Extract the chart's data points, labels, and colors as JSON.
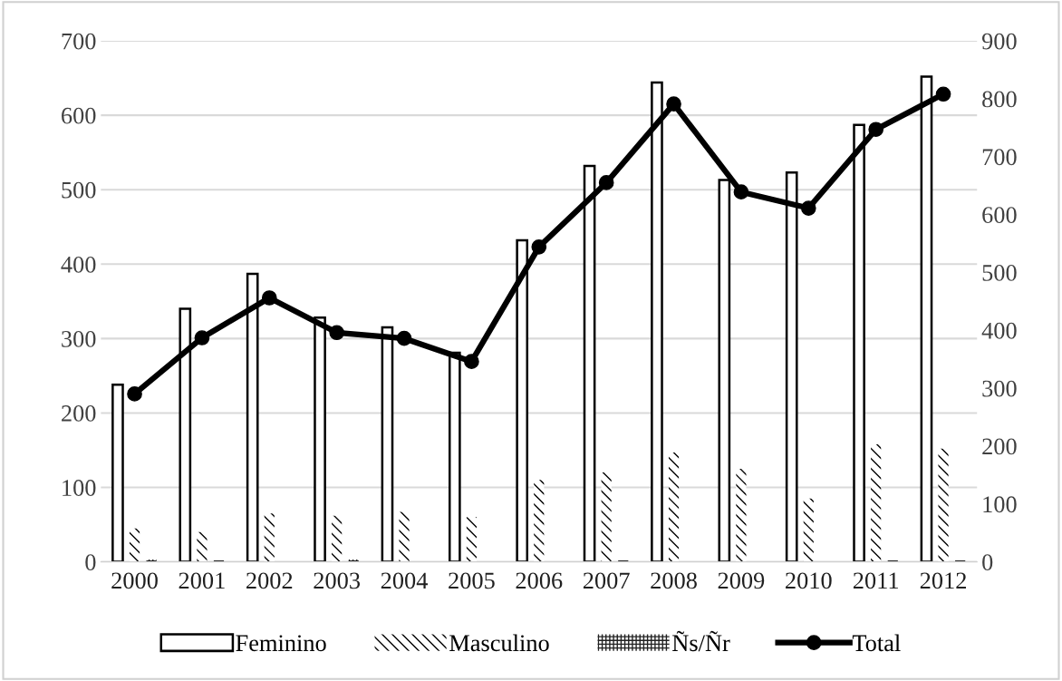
{
  "chart_data": {
    "type": "bar",
    "categories": [
      "2000",
      "2001",
      "2002",
      "2003",
      "2004",
      "2005",
      "2006",
      "2007",
      "2008",
      "2009",
      "2010",
      "2011",
      "2012"
    ],
    "series": [
      {
        "name": "Feminino",
        "color": "#ffffff",
        "values": [
          238,
          340,
          387,
          328,
          315,
          281,
          432,
          532,
          644,
          513,
          523,
          587,
          652
        ]
      },
      {
        "name": "Masculino",
        "color": "#000000",
        "values": [
          45,
          40,
          65,
          62,
          67,
          60,
          110,
          120,
          147,
          125,
          85,
          158,
          152
        ]
      },
      {
        "name": "Ñs/Ñr",
        "color": "#222222",
        "values": [
          3,
          2,
          0,
          3,
          0,
          0,
          0,
          2,
          0,
          0,
          0,
          2,
          2
        ]
      },
      {
        "name": "Total",
        "type": "line",
        "axis": "y2",
        "color": "#000000",
        "marker": "circle",
        "values": [
          290,
          387,
          456,
          396,
          386,
          346,
          544,
          655,
          791,
          639,
          611,
          747,
          808
        ]
      }
    ],
    "ylim": [
      0,
      700
    ],
    "yticks": [
      0,
      100,
      200,
      300,
      400,
      500,
      600,
      700
    ],
    "y2lim": [
      0,
      900
    ],
    "y2ticks": [
      0,
      100,
      200,
      300,
      400,
      500,
      600,
      700,
      800,
      900
    ],
    "grid": "y",
    "legend": "bottom"
  }
}
